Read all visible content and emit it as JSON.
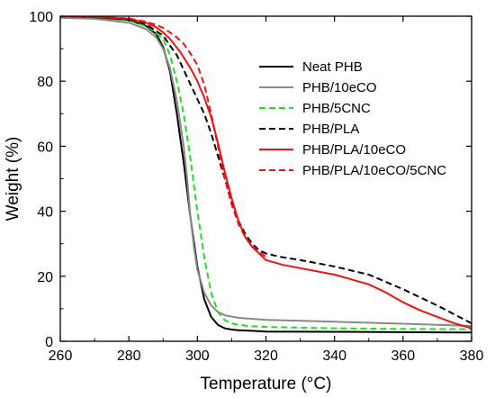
{
  "chart_data": {
    "type": "line",
    "title": "",
    "xlabel": "Temperature (°C)",
    "ylabel": "Weight (%)",
    "xlim": [
      260,
      380
    ],
    "ylim": [
      0,
      100
    ],
    "xticks": [
      260,
      280,
      300,
      320,
      340,
      360,
      380
    ],
    "yticks": [
      0,
      20,
      40,
      60,
      80,
      100
    ],
    "grid": false,
    "legend_position": "top-right",
    "series": [
      {
        "name": "Neat PHB",
        "color": "#000000",
        "dash": "solid",
        "x": [
          260,
          270,
          280,
          285,
          288,
          290,
          292,
          294,
          296,
          298,
          300,
          302,
          304,
          306,
          308,
          310,
          312,
          316,
          320,
          340,
          360,
          380
        ],
        "y": [
          100,
          99.7,
          98.8,
          97,
          94.5,
          90.5,
          83,
          70,
          55,
          38,
          23,
          13,
          7.5,
          5,
          4,
          3.6,
          3.4,
          3.2,
          3,
          2.9,
          2.8,
          2.7
        ]
      },
      {
        "name": "PHB/10eCO",
        "color": "#888888",
        "dash": "solid",
        "x": [
          260,
          270,
          280,
          285,
          288,
          290,
          292,
          294,
          296,
          297,
          298,
          299,
          300,
          302,
          304,
          306,
          308,
          312,
          320,
          340,
          360,
          380
        ],
        "y": [
          99.5,
          99.2,
          98,
          96,
          93.5,
          90,
          84,
          74,
          60,
          50,
          38,
          29,
          22,
          15,
          11,
          9,
          8,
          7.2,
          6.6,
          6,
          5.4,
          4.7
        ]
      },
      {
        "name": "PHB/5CNC",
        "color": "#22dd22",
        "dash": "dashed",
        "x": [
          260,
          270,
          280,
          286,
          290,
          292,
          294,
          296,
          298,
          300,
          302,
          304,
          306,
          308,
          310,
          312,
          316,
          320,
          340,
          360,
          380
        ],
        "y": [
          100,
          99.6,
          98.7,
          96.5,
          93,
          88,
          80,
          70,
          56,
          40,
          26,
          15,
          9,
          6.5,
          5.5,
          5,
          4.6,
          4.4,
          4,
          3.8,
          3.7
        ]
      },
      {
        "name": "PHB/PLA",
        "color": "#000000",
        "dash": "dashed",
        "x": [
          260,
          270,
          280,
          285,
          290,
          294,
          298,
          302,
          304,
          306,
          308,
          310,
          312,
          314,
          316,
          318,
          320,
          324,
          330,
          340,
          350,
          360,
          370,
          380
        ],
        "y": [
          100,
          99.7,
          99,
          97.5,
          94,
          88,
          79,
          70,
          64,
          57,
          50,
          43,
          37,
          33,
          30,
          28,
          27,
          26,
          25,
          23,
          20.5,
          16,
          11,
          5.5
        ]
      },
      {
        "name": "PHB/PLA/10eCO",
        "color": "#ee1111",
        "dash": "solid",
        "x": [
          260,
          270,
          280,
          285,
          288,
          290,
          292,
          295,
          298,
          300,
          302,
          304,
          306,
          308,
          310,
          312,
          314,
          316,
          318,
          320,
          325,
          330,
          340,
          350,
          355,
          360,
          365,
          370,
          375,
          380
        ],
        "y": [
          100,
          99.8,
          99.2,
          98,
          96.6,
          95,
          93,
          89,
          84,
          80,
          75,
          69,
          61,
          52,
          44,
          37,
          32,
          29,
          27,
          25,
          23.5,
          22.5,
          20.5,
          17.5,
          15,
          12,
          9.5,
          7.5,
          5.5,
          4
        ]
      },
      {
        "name": "PHB/PLA/10eCO/5CNC",
        "color": "#ee1111",
        "dash": "dashed",
        "x": [
          260,
          270,
          280,
          285,
          288,
          290,
          292,
          294,
          296,
          298,
          300,
          302,
          304,
          306,
          308,
          310,
          312,
          314,
          316,
          318,
          320
        ],
        "y": [
          100,
          99.8,
          99.3,
          98.3,
          97.3,
          96.4,
          95,
          93.5,
          91.5,
          88.5,
          85,
          79,
          70,
          60,
          50,
          42,
          36,
          32,
          29.5,
          27.5,
          26
        ]
      }
    ]
  }
}
